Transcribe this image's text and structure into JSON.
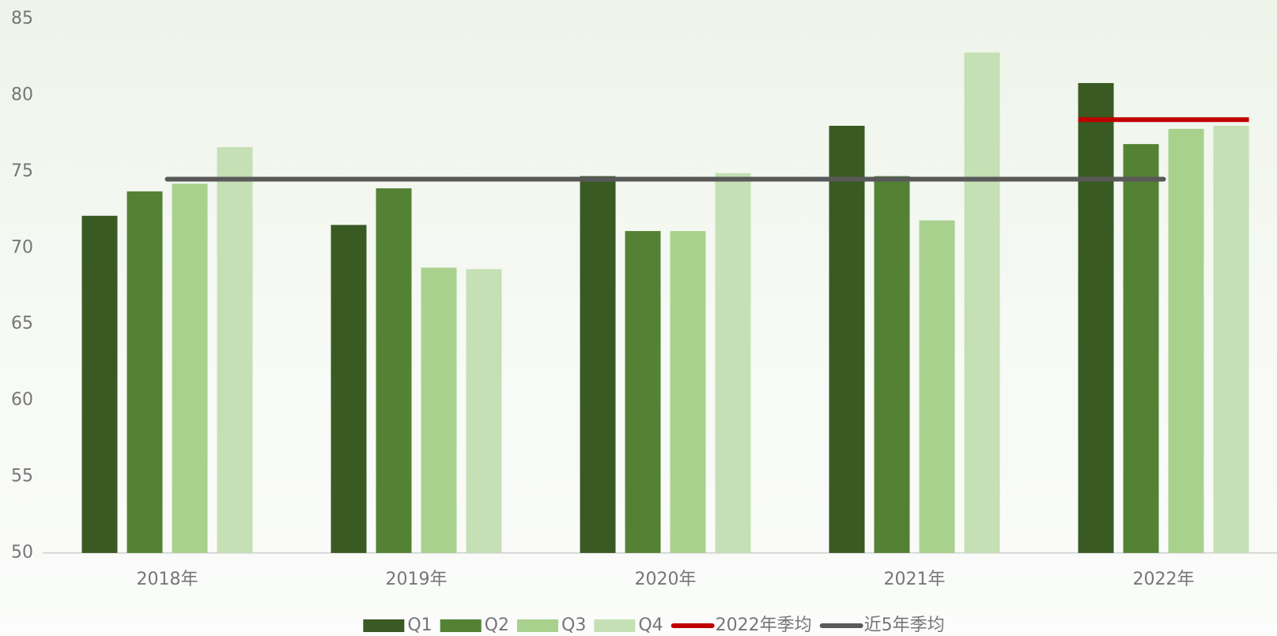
{
  "chart_data": {
    "type": "bar",
    "categories": [
      "2018年",
      "2019年",
      "2020年",
      "2021年",
      "2022年"
    ],
    "series": [
      {
        "name": "Q1",
        "color": "#3a5a24",
        "values": [
          72.1,
          71.5,
          74.7,
          78.0,
          80.8
        ]
      },
      {
        "name": "Q2",
        "color": "#548235",
        "values": [
          73.7,
          73.9,
          71.1,
          74.7,
          76.8
        ]
      },
      {
        "name": "Q3",
        "color": "#a9d18e",
        "values": [
          74.2,
          68.7,
          71.1,
          71.8,
          77.8
        ]
      },
      {
        "name": "Q4",
        "color": "#c5e0b4",
        "values": [
          76.6,
          68.6,
          74.9,
          82.8,
          78.0
        ]
      },
      {
        "name": "2022年季均",
        "type": "hline",
        "color": "#c00000",
        "values": [
          null,
          null,
          null,
          null,
          78.4
        ]
      },
      {
        "name": "近5年季均",
        "type": "line",
        "color": "#595959",
        "values": [
          74.5,
          74.5,
          74.5,
          74.5,
          74.5
        ]
      }
    ],
    "ylim": [
      50,
      85
    ],
    "yticks": [
      50,
      55,
      60,
      65,
      70,
      75,
      80,
      85
    ],
    "grid": false,
    "legend": "bottom"
  }
}
